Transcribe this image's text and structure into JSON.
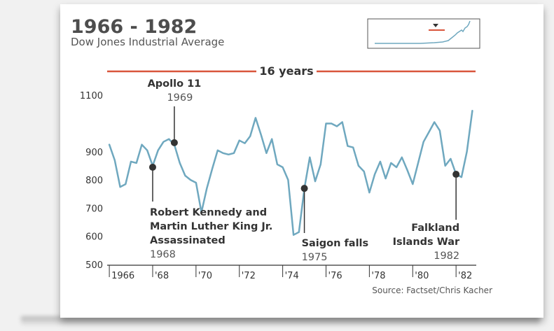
{
  "chart_data": {
    "type": "line",
    "title": "1966 - 1982",
    "subtitle": "Dow Jones Industrial Average",
    "period_label": "16 years",
    "source": "Source: Factset/Chris Kacher",
    "ylim": [
      500,
      1160
    ],
    "xlim": [
      1965.9,
      1982.9
    ],
    "yticks": [
      {
        "value": 500,
        "label": "500"
      },
      {
        "value": 600,
        "label": "600"
      },
      {
        "value": 700,
        "label": "700"
      },
      {
        "value": 800,
        "label": "800"
      },
      {
        "value": 900,
        "label": "900"
      },
      {
        "value": 1100,
        "label": "1100"
      }
    ],
    "xticks": [
      {
        "value": 1966,
        "label": "1966"
      },
      {
        "value": 1968,
        "label": "'68"
      },
      {
        "value": 1970,
        "label": "'70"
      },
      {
        "value": 1972,
        "label": "'72"
      },
      {
        "value": 1974,
        "label": "'74"
      },
      {
        "value": 1976,
        "label": "'76"
      },
      {
        "value": 1978,
        "label": "'78"
      },
      {
        "value": 1980,
        "label": "'80"
      },
      {
        "value": 1982,
        "label": "'82"
      }
    ],
    "line_color": "#6fa8bf",
    "accent_color": "#d9553b",
    "series": [
      {
        "points": [
          [
            1966.0,
            925
          ],
          [
            1966.25,
            870
          ],
          [
            1966.5,
            775
          ],
          [
            1966.75,
            785
          ],
          [
            1967.0,
            865
          ],
          [
            1967.25,
            860
          ],
          [
            1967.5,
            925
          ],
          [
            1967.75,
            905
          ],
          [
            1968.0,
            850
          ],
          [
            1968.25,
            905
          ],
          [
            1968.5,
            935
          ],
          [
            1968.75,
            945
          ],
          [
            1969.0,
            925
          ],
          [
            1969.25,
            860
          ],
          [
            1969.5,
            815
          ],
          [
            1969.75,
            800
          ],
          [
            1970.0,
            790
          ],
          [
            1970.25,
            685
          ],
          [
            1970.5,
            770
          ],
          [
            1970.75,
            840
          ],
          [
            1971.0,
            905
          ],
          [
            1971.25,
            895
          ],
          [
            1971.5,
            890
          ],
          [
            1971.75,
            895
          ],
          [
            1972.0,
            940
          ],
          [
            1972.25,
            930
          ],
          [
            1972.5,
            955
          ],
          [
            1972.75,
            1020
          ],
          [
            1973.0,
            960
          ],
          [
            1973.25,
            895
          ],
          [
            1973.5,
            945
          ],
          [
            1973.75,
            855
          ],
          [
            1974.0,
            845
          ],
          [
            1974.25,
            800
          ],
          [
            1974.5,
            605
          ],
          [
            1974.75,
            615
          ],
          [
            1975.0,
            770
          ],
          [
            1975.25,
            880
          ],
          [
            1975.5,
            795
          ],
          [
            1975.75,
            855
          ],
          [
            1976.0,
            1000
          ],
          [
            1976.25,
            1000
          ],
          [
            1976.5,
            990
          ],
          [
            1976.75,
            1005
          ],
          [
            1977.0,
            920
          ],
          [
            1977.25,
            915
          ],
          [
            1977.5,
            850
          ],
          [
            1977.75,
            830
          ],
          [
            1978.0,
            755
          ],
          [
            1978.25,
            820
          ],
          [
            1978.5,
            865
          ],
          [
            1978.75,
            805
          ],
          [
            1979.0,
            860
          ],
          [
            1979.25,
            845
          ],
          [
            1979.5,
            880
          ],
          [
            1979.75,
            835
          ],
          [
            1980.0,
            785
          ],
          [
            1980.25,
            860
          ],
          [
            1980.5,
            935
          ],
          [
            1980.75,
            970
          ],
          [
            1981.0,
            1005
          ],
          [
            1981.25,
            975
          ],
          [
            1981.5,
            850
          ],
          [
            1981.75,
            875
          ],
          [
            1982.0,
            820
          ],
          [
            1982.25,
            810
          ],
          [
            1982.5,
            900
          ],
          [
            1982.75,
            1045
          ]
        ]
      }
    ],
    "annotations": [
      {
        "x": 1968.0,
        "y": 845,
        "title_lines": [
          "Robert Kennedy and",
          "Martin Luther King Jr.",
          "Assassinated"
        ],
        "year": "1968",
        "placement": "below"
      },
      {
        "x": 1969.0,
        "y": 932,
        "title_lines": [
          "Apollo 11"
        ],
        "year": "1969",
        "placement": "above"
      },
      {
        "x": 1975.0,
        "y": 770,
        "title_lines": [
          "Saigon falls"
        ],
        "year": "1975",
        "placement": "below"
      },
      {
        "x": 1982.0,
        "y": 820,
        "title_lines": [
          "Falkland",
          "Islands War"
        ],
        "year": "1982",
        "placement": "below"
      }
    ]
  }
}
